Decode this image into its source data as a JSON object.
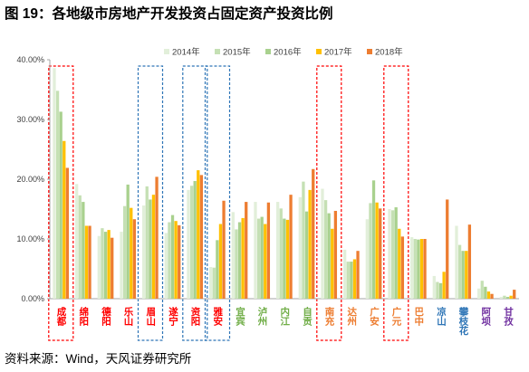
{
  "chart_data": {
    "type": "bar",
    "title": "图 19：各地级市房地产开发投资占固定资产投资比例",
    "xlabel": "",
    "ylabel": "",
    "ylim": [
      0,
      40
    ],
    "yticks": [
      0,
      10,
      20,
      30,
      40
    ],
    "ytick_labels": [
      "0.00%",
      "10.00%",
      "20.00%",
      "30.00%",
      "40.00%"
    ],
    "grid": false,
    "legend": "top",
    "categories": [
      "成都",
      "绵阳",
      "德阳",
      "乐山",
      "眉山",
      "遂宁",
      "资阳",
      "雅安",
      "宜宾",
      "泸州",
      "内江",
      "自贡",
      "南充",
      "达州",
      "广安",
      "广元",
      "巴中",
      "凉山",
      "攀枝花",
      "阿坝",
      "甘孜"
    ],
    "category_colors": [
      "#ff0000",
      "#ff0000",
      "#ff0000",
      "#ff0000",
      "#ff0000",
      "#ff0000",
      "#ff0000",
      "#ff0000",
      "#70ad47",
      "#70ad47",
      "#70ad47",
      "#70ad47",
      "#ed7d31",
      "#ed7d31",
      "#ed7d31",
      "#ed7d31",
      "#ed7d31",
      "#2e75b6",
      "#2e75b6",
      "#7030a0",
      "#7030a0"
    ],
    "series": [
      {
        "name": "2014年",
        "color": "#e2efda",
        "values": [
          38.6,
          19.2,
          10.5,
          11.2,
          15.6,
          11.0,
          18.2,
          5.3,
          14.5,
          16.2,
          16.2,
          17.0,
          18.4,
          8.2,
          13.3,
          15.0,
          10.3,
          3.8,
          12.2,
          1.7,
          0.3
        ]
      },
      {
        "name": "2015年",
        "color": "#c5e0b4",
        "values": [
          34.8,
          17.3,
          11.8,
          15.5,
          18.8,
          12.8,
          18.9,
          5.2,
          11.6,
          13.4,
          15.1,
          19.6,
          16.5,
          6.2,
          16.0,
          14.8,
          10.0,
          2.8,
          9.0,
          3.0,
          0.5
        ]
      },
      {
        "name": "2016年",
        "color": "#a9d18e",
        "values": [
          31.3,
          16.2,
          11.2,
          19.1,
          16.6,
          14.0,
          19.7,
          9.8,
          12.8,
          13.7,
          13.4,
          14.6,
          14.3,
          6.2,
          19.8,
          15.3,
          9.9,
          2.6,
          8.0,
          2.0,
          0.3
        ]
      },
      {
        "name": "2017年",
        "color": "#ffc000",
        "values": [
          26.4,
          12.2,
          11.5,
          15.2,
          17.4,
          13.0,
          21.5,
          12.5,
          13.5,
          12.5,
          13.2,
          18.2,
          11.7,
          6.6,
          16.1,
          11.7,
          10.0,
          4.5,
          8.0,
          1.2,
          0.5
        ]
      },
      {
        "name": "2018年",
        "color": "#ed7d31",
        "values": [
          21.9,
          12.2,
          10.2,
          13.3,
          20.4,
          12.3,
          20.7,
          16.4,
          16.2,
          16.1,
          17.4,
          21.7,
          14.7,
          8.0,
          15.1,
          10.4,
          10.0,
          16.6,
          12.4,
          0.8,
          1.5
        ]
      }
    ],
    "highlights": [
      {
        "index": 0,
        "color": "#ff0000"
      },
      {
        "index": 4,
        "color": "#2e75b6"
      },
      {
        "index": 6,
        "color": "#2e75b6"
      },
      {
        "index": 7,
        "color": "#2e75b6"
      },
      {
        "index": 12,
        "color": "#ff0000"
      },
      {
        "index": 15,
        "color": "#ff0000"
      }
    ]
  },
  "footer": {
    "source": "资料来源：Wind，天风证券研究所"
  }
}
